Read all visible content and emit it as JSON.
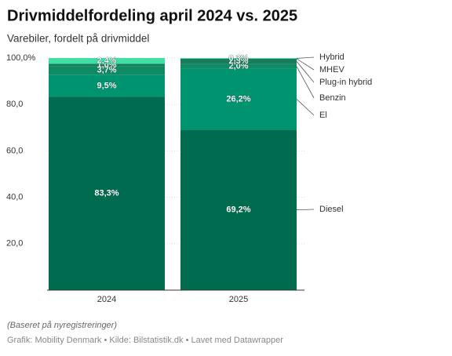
{
  "chart_data": {
    "type": "stacked_bar",
    "title": "Drivmiddelfordeling april 2024 vs. 2025",
    "subtitle": "Varebiler, fordelt på drivmiddel",
    "note": "(Baseret på nyregistreringer)",
    "source": "Grafik: Mobility Denmark • Kilde: Bilstatistik.dk • Lavet med Datawrapper",
    "categories": [
      "2024",
      "2025"
    ],
    "series": [
      {
        "name": "Diesel",
        "color": "#006b4e",
        "values": [
          83.3,
          69.2
        ],
        "value_labels": [
          "83,3%",
          "69,2%"
        ]
      },
      {
        "name": "El",
        "color": "#00936f",
        "values": [
          9.5,
          26.2
        ],
        "value_labels": [
          "9,5%",
          "26,2%"
        ]
      },
      {
        "name": "Benzin",
        "color": "#0e8a64",
        "values": [
          3.7,
          2.0
        ],
        "value_labels": [
          "3,7%",
          "2,0%"
        ]
      },
      {
        "name": "Plug-in hybrid",
        "color": "#1a7a5c",
        "values": [
          1.0,
          2.3
        ],
        "value_labels": [
          "1,0%",
          "2,3%"
        ]
      },
      {
        "name": "MHEV",
        "color": "#2bb98a",
        "values": [
          0.1,
          0.0
        ],
        "value_labels": [
          null,
          null
        ]
      },
      {
        "name": "Hybrid",
        "color": "#3ee0a6",
        "values": [
          2.4,
          0.3
        ],
        "value_labels": [
          "2,4%",
          "0,3%"
        ]
      }
    ],
    "ylim": [
      0,
      100
    ],
    "yticks": [
      {
        "value": 20,
        "label": "20,0"
      },
      {
        "value": 40,
        "label": "40,0"
      },
      {
        "value": 60,
        "label": "60,0"
      },
      {
        "value": 80,
        "label": "80,0"
      },
      {
        "value": 100,
        "label": "100,0%"
      }
    ],
    "grid": true
  }
}
